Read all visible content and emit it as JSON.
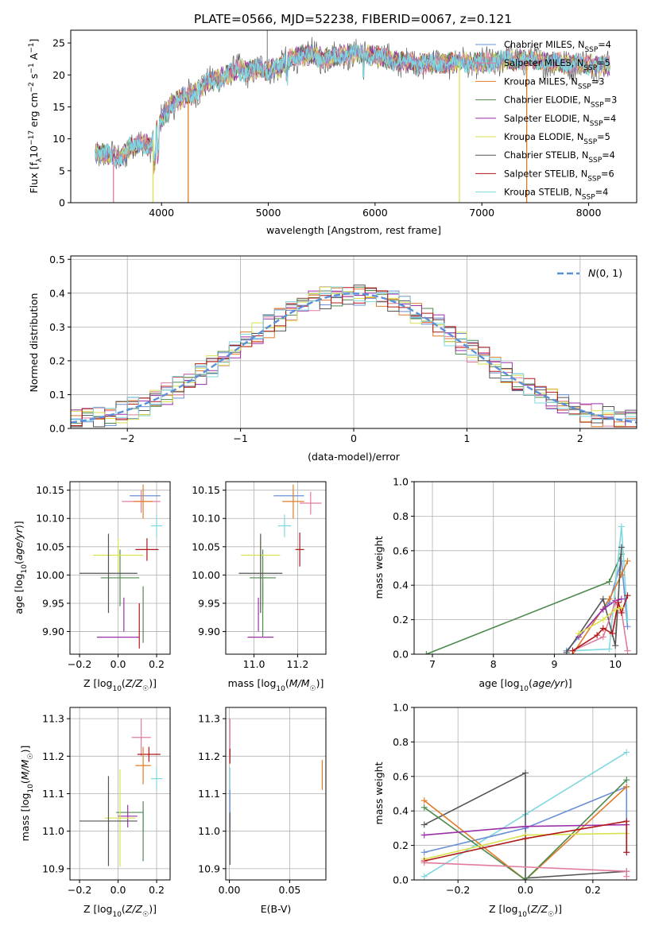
{
  "figure_title": "PLATE=0566, MJD=52238, FIBERID=0067, z=0.121",
  "colors": {
    "chabrier_miles": "#6a8fd8",
    "salpeter_miles": "#e07b9e",
    "kroupa_miles": "#e07b27",
    "chabrier_elodie": "#4e8a4e",
    "salpeter_elodie": "#9a2fa8",
    "kroupa_elodie": "#d8e24e",
    "chabrier_stelib": "#555555",
    "salpeter_stelib": "#b01818",
    "kroupa_stelib": "#7fd8e0",
    "normal_curve": "#5b8fd9"
  },
  "chart_data": [
    {
      "id": "spectrum",
      "type": "line",
      "title": "PLATE=0566, MJD=52238, FIBERID=0067, z=0.121",
      "xlabel": "wavelength [Angstrom, rest frame]",
      "ylabel": "Flux [f_λ 10^-17 erg cm^-2 s^-1 A^-1]",
      "xlim": [
        3150,
        8450
      ],
      "ylim": [
        0,
        27
      ],
      "xticks": [
        "4000",
        "5000",
        "6000",
        "7000",
        "8000"
      ],
      "yticks": [
        "0",
        "5",
        "10",
        "15",
        "20",
        "25"
      ],
      "legend_position": "top-right",
      "continuum": {
        "x": [
          3380,
          3500,
          3600,
          3700,
          3800,
          3900,
          4000,
          4100,
          4200,
          4300,
          4400,
          4500,
          4600,
          4700,
          4800,
          4900,
          5000,
          5100,
          5200,
          5300,
          5400,
          5500,
          5600,
          5700,
          5800,
          5900,
          6000,
          6200,
          6400,
          6600,
          6800,
          7000,
          7200,
          7400,
          7600,
          7800,
          8000,
          8200
        ],
        "y": [
          7.8,
          7.5,
          6.8,
          8.5,
          9.2,
          9.0,
          13.0,
          15.5,
          16.5,
          17.0,
          18.5,
          19.2,
          19.8,
          20.8,
          20.5,
          21.0,
          20.8,
          21.2,
          22.5,
          23.0,
          23.2,
          22.6,
          22.8,
          23.2,
          23.5,
          23.3,
          23.0,
          22.2,
          21.8,
          21.8,
          22.0,
          21.8,
          22.3,
          22.4,
          22.0,
          21.8,
          21.6,
          21.4
        ]
      },
      "drops": [
        {
          "series": "Salpeter MILES",
          "x": 3550
        },
        {
          "series": "Kroupa ELODIE",
          "x": 3920
        },
        {
          "series": "Kroupa MILES",
          "x": 4250
        },
        {
          "series": "Kroupa ELODIE",
          "x": 6790
        },
        {
          "series": "Kroupa MILES",
          "x": 7420
        }
      ],
      "series": [
        {
          "name": "Chabrier MILES, N_SSP=4",
          "color_key": "chabrier_miles"
        },
        {
          "name": "Salpeter MILES, N_SSP=5",
          "color_key": "salpeter_miles"
        },
        {
          "name": "Kroupa MILES, N_SSP=3",
          "color_key": "kroupa_miles"
        },
        {
          "name": "Chabrier ELODIE, N_SSP=3",
          "color_key": "chabrier_elodie"
        },
        {
          "name": "Salpeter ELODIE, N_SSP=4",
          "color_key": "salpeter_elodie"
        },
        {
          "name": "Kroupa ELODIE, N_SSP=5",
          "color_key": "kroupa_elodie"
        },
        {
          "name": "Chabrier STELIB, N_SSP=4",
          "color_key": "chabrier_stelib"
        },
        {
          "name": "Salpeter STELIB, N_SSP=6",
          "color_key": "salpeter_stelib"
        },
        {
          "name": "Kroupa STELIB, N_SSP=4",
          "color_key": "kroupa_stelib"
        }
      ]
    },
    {
      "id": "residuals",
      "type": "bar",
      "xlabel": "(data-model)/error",
      "ylabel": "Normed distribution",
      "xlim": [
        -2.5,
        2.5
      ],
      "ylim": [
        0,
        0.51
      ],
      "xticks": [
        "−2",
        "−1",
        "0",
        "1",
        "2"
      ],
      "yticks": [
        "0.0",
        "0.1",
        "0.2",
        "0.3",
        "0.4",
        "0.5"
      ],
      "grid": true,
      "legend_position": "top-right",
      "bin_width": 0.1,
      "normal_curve_label": "N(0,1)",
      "series_keys": [
        "chabrier_miles",
        "salpeter_miles",
        "kroupa_miles",
        "chabrier_elodie",
        "salpeter_elodie",
        "kroupa_elodie",
        "chabrier_stelib",
        "salpeter_stelib",
        "kroupa_stelib"
      ]
    },
    {
      "id": "age_vs_Z",
      "type": "scatter",
      "xlabel": "Z [log10(Z/Z☉)]",
      "ylabel": "age [log10(age/yr)]",
      "xlim": [
        -0.25,
        0.27
      ],
      "ylim": [
        9.86,
        10.165
      ],
      "xticks": [
        -0.2,
        0.0,
        0.2
      ],
      "yticks": [
        9.9,
        9.95,
        10.0,
        10.05,
        10.1,
        10.15
      ],
      "grid": true,
      "points": [
        {
          "key": "chabrier_miles",
          "x": 0.14,
          "y": 10.14,
          "xerr": 0.08,
          "yerr": 0.0
        },
        {
          "key": "salpeter_miles",
          "x": 0.12,
          "y": 10.13,
          "xerr": 0.1,
          "yerr": 0.02
        },
        {
          "key": "kroupa_miles",
          "x": 0.13,
          "y": 10.13,
          "xerr": 0.05,
          "yerr": 0.03
        },
        {
          "key": "chabrier_elodie",
          "x": 0.01,
          "y": 9.995,
          "xerr": 0.1,
          "yerr": 0.05
        },
        {
          "key": "salpeter_elodie",
          "x": 0.0,
          "y": 9.89,
          "xerr": 0.11,
          "yerr": 0.0
        },
        {
          "key": "kroupa_elodie",
          "x": 0.0,
          "y": 10.035,
          "xerr": 0.13,
          "yerr": 0.03
        },
        {
          "key": "chabrier_stelib",
          "x": -0.05,
          "y": 10.003,
          "xerr": 0.15,
          "yerr": 0.07
        },
        {
          "key": "salpeter_stelib",
          "x": 0.15,
          "y": 10.045,
          "xerr": 0.06,
          "yerr": 0.02
        },
        {
          "key": "kroupa_stelib",
          "x": 0.2,
          "y": 10.087,
          "xerr": 0.03,
          "yerr": 0.02
        },
        {
          "key": "salpeter_elodie",
          "x": 0.03,
          "y": 9.93,
          "xerr": 0.0,
          "yerr": 0.03
        },
        {
          "key": "chabrier_elodie",
          "x": 0.13,
          "y": 9.93,
          "xerr": 0.0,
          "yerr": 0.05
        },
        {
          "key": "salpeter_stelib",
          "x": 0.11,
          "y": 9.91,
          "xerr": 0.0,
          "yerr": 0.04
        }
      ]
    },
    {
      "id": "age_vs_mass",
      "type": "scatter",
      "xlabel": "mass [log10(M/M☉)]",
      "ylabel": "",
      "xlim": [
        10.87,
        11.33
      ],
      "ylim": [
        9.86,
        10.165
      ],
      "xticks": [
        11.0,
        11.2
      ],
      "yticks": [
        9.9,
        9.95,
        10.0,
        10.05,
        10.1,
        10.15
      ],
      "grid": true,
      "points": [
        {
          "key": "chabrier_miles",
          "x": 11.16,
          "y": 10.14,
          "xerr": 0.07,
          "yerr": 0.0
        },
        {
          "key": "salpeter_miles",
          "x": 11.26,
          "y": 10.127,
          "xerr": 0.05,
          "yerr": 0.02
        },
        {
          "key": "kroupa_miles",
          "x": 11.18,
          "y": 10.13,
          "xerr": 0.05,
          "yerr": 0.03
        },
        {
          "key": "chabrier_elodie",
          "x": 11.04,
          "y": 9.995,
          "xerr": 0.06,
          "yerr": 0.05
        },
        {
          "key": "salpeter_elodie",
          "x": 11.03,
          "y": 9.89,
          "xerr": 0.06,
          "yerr": 0.0
        },
        {
          "key": "kroupa_elodie",
          "x": 11.03,
          "y": 10.035,
          "xerr": 0.09,
          "yerr": 0.03
        },
        {
          "key": "chabrier_stelib",
          "x": 11.03,
          "y": 10.003,
          "xerr": 0.1,
          "yerr": 0.07
        },
        {
          "key": "salpeter_stelib",
          "x": 11.21,
          "y": 10.045,
          "xerr": 0.02,
          "yerr": 0.03
        },
        {
          "key": "kroupa_stelib",
          "x": 11.14,
          "y": 10.087,
          "xerr": 0.03,
          "yerr": 0.02
        },
        {
          "key": "salpeter_elodie",
          "x": 11.02,
          "y": 9.93,
          "xerr": 0.0,
          "yerr": 0.03
        },
        {
          "key": "chabrier_elodie",
          "x": 11.04,
          "y": 9.94,
          "xerr": 0.0,
          "yerr": 0.05
        }
      ]
    },
    {
      "id": "weight_vs_age",
      "type": "line",
      "xlabel": "age [log10(age/yr)]",
      "ylabel": "mass weight",
      "xlim": [
        6.7,
        10.35
      ],
      "ylim": [
        0,
        1.0
      ],
      "xticks": [
        7,
        8,
        9,
        10
      ],
      "yticks": [
        0.0,
        0.2,
        0.4,
        0.6,
        0.8,
        1.0
      ],
      "grid": true,
      "series": [
        {
          "key": "chabrier_elodie",
          "x": [
            6.9,
            9.9,
            10.1
          ],
          "y": [
            0.0,
            0.42,
            0.58
          ]
        },
        {
          "key": "chabrier_miles",
          "x": [
            9.2,
            9.9,
            10.1,
            10.2
          ],
          "y": [
            0.02,
            0.3,
            0.54,
            0.16
          ]
        },
        {
          "key": "kroupa_stelib",
          "x": [
            9.3,
            9.9,
            10.1,
            10.2
          ],
          "y": [
            0.02,
            0.03,
            0.74,
            0.2
          ]
        },
        {
          "key": "kroupa_miles",
          "x": [
            9.3,
            9.9,
            10.1,
            10.2
          ],
          "y": [
            0.0,
            0.32,
            0.46,
            0.54
          ]
        },
        {
          "key": "chabrier_stelib",
          "x": [
            9.2,
            9.8,
            10.0,
            10.1
          ],
          "y": [
            0.01,
            0.32,
            0.05,
            0.62
          ]
        },
        {
          "key": "salpeter_elodie",
          "x": [
            9.4,
            9.8,
            10.0,
            10.1
          ],
          "y": [
            0.1,
            0.26,
            0.31,
            0.32
          ]
        },
        {
          "key": "salpeter_miles",
          "x": [
            9.3,
            9.8,
            10.0,
            10.1,
            10.2
          ],
          "y": [
            0.02,
            0.1,
            0.3,
            0.25,
            0.02
          ]
        },
        {
          "key": "salpeter_stelib",
          "x": [
            9.3,
            9.7,
            9.8,
            9.95,
            10.05,
            10.1,
            10.2
          ],
          "y": [
            0.02,
            0.11,
            0.15,
            0.12,
            0.3,
            0.24,
            0.34
          ]
        },
        {
          "key": "kroupa_elodie",
          "x": [
            9.4,
            9.8,
            10.0,
            10.1
          ],
          "y": [
            0.12,
            0.2,
            0.26,
            0.27
          ]
        }
      ]
    },
    {
      "id": "mass_vs_Z",
      "type": "scatter",
      "xlabel": "Z [log10(Z/Z☉)]",
      "ylabel": "mass [log10(M/M☉)]",
      "xlim": [
        -0.25,
        0.27
      ],
      "ylim": [
        10.87,
        11.33
      ],
      "xticks": [
        -0.2,
        0.0,
        0.2
      ],
      "yticks": [
        10.9,
        11.0,
        11.1,
        11.2,
        11.3
      ],
      "grid": true,
      "points": [
        {
          "key": "salpeter_miles",
          "x": 0.12,
          "y": 11.25,
          "xerr": 0.05,
          "yerr": 0.05
        },
        {
          "key": "salpeter_stelib",
          "x": 0.16,
          "y": 11.205,
          "xerr": 0.06,
          "yerr": 0.02
        },
        {
          "key": "kroupa_miles",
          "x": 0.13,
          "y": 11.175,
          "xerr": 0.04,
          "yerr": 0.05
        },
        {
          "key": "kroupa_stelib",
          "x": 0.2,
          "y": 11.14,
          "xerr": 0.03,
          "yerr": 0.03
        },
        {
          "key": "chabrier_elodie",
          "x": 0.06,
          "y": 11.05,
          "xerr": 0.07,
          "yerr": 0.0
        },
        {
          "key": "salpeter_elodie",
          "x": 0.05,
          "y": 11.04,
          "xerr": 0.05,
          "yerr": 0.03
        },
        {
          "key": "kroupa_elodie",
          "x": 0.01,
          "y": 11.035,
          "xerr": 0.08,
          "yerr": 0.13
        },
        {
          "key": "chabrier_stelib",
          "x": -0.05,
          "y": 11.027,
          "xerr": 0.15,
          "yerr": 0.12
        },
        {
          "key": "chabrier_miles",
          "x": 0.13,
          "y": 11.03,
          "xerr": 0.0,
          "yerr": 0.03
        },
        {
          "key": "chabrier_elodie",
          "x": 0.13,
          "y": 11.0,
          "xerr": 0.0,
          "yerr": 0.08
        }
      ]
    },
    {
      "id": "mass_vs_EBV",
      "type": "scatter",
      "xlabel": "E(B-V)",
      "ylabel": "",
      "xlim": [
        -0.003,
        0.08
      ],
      "ylim": [
        10.87,
        11.33
      ],
      "xticks": [
        0.0,
        0.05
      ],
      "yticks": [
        10.9,
        11.0,
        11.1,
        11.2,
        11.3
      ],
      "grid": true,
      "points": [
        {
          "key": "salpeter_miles",
          "x": 0.0005,
          "y": 11.25,
          "xerr": 0.0,
          "yerr": 0.05
        },
        {
          "key": "salpeter_stelib",
          "x": 0.0005,
          "y": 11.2,
          "xerr": 0.0,
          "yerr": 0.02
        },
        {
          "key": "kroupa_stelib",
          "x": 0.0005,
          "y": 11.14,
          "xerr": 0.0,
          "yerr": 0.03
        },
        {
          "key": "chabrier_miles",
          "x": 0.0005,
          "y": 11.06,
          "xerr": 0.0,
          "yerr": 0.05
        },
        {
          "key": "chabrier_stelib",
          "x": 0.0005,
          "y": 10.98,
          "xerr": 0.0,
          "yerr": 0.07
        },
        {
          "key": "kroupa_miles",
          "x": 0.077,
          "y": 11.15,
          "xerr": 0.0,
          "yerr": 0.04
        }
      ]
    },
    {
      "id": "weight_vs_Z",
      "type": "line",
      "xlabel": "Z [log10(Z/Z☉)]",
      "ylabel": "mass weight",
      "xlim": [
        -0.33,
        0.33
      ],
      "ylim": [
        0,
        1.0
      ],
      "xticks": [
        -0.2,
        0.0,
        0.2
      ],
      "yticks": [
        0.0,
        0.2,
        0.4,
        0.6,
        0.8,
        1.0
      ],
      "grid": true,
      "series": [
        {
          "key": "kroupa_stelib",
          "x": [
            -0.3,
            0.0,
            0.3
          ],
          "y": [
            0.02,
            0.38,
            0.74
          ]
        },
        {
          "key": "chabrier_stelib",
          "x": [
            -0.3,
            0.0,
            0.0,
            0.3
          ],
          "y": [
            0.32,
            0.62,
            0.01,
            0.05
          ]
        },
        {
          "key": "chabrier_miles",
          "x": [
            -0.3,
            0.0,
            0.3,
            0.3
          ],
          "y": [
            0.16,
            0.3,
            0.54,
            0.16
          ]
        },
        {
          "key": "kroupa_miles",
          "x": [
            -0.3,
            0.0,
            0.3
          ],
          "y": [
            0.46,
            0.0,
            0.54
          ]
        },
        {
          "key": "chabrier_elodie",
          "x": [
            -0.3,
            0.0,
            0.3
          ],
          "y": [
            0.42,
            0.0,
            0.58
          ]
        },
        {
          "key": "salpeter_elodie",
          "x": [
            -0.3,
            0.0,
            0.3
          ],
          "y": [
            0.26,
            0.31,
            0.32
          ]
        },
        {
          "key": "kroupa_elodie",
          "x": [
            -0.3,
            0.0,
            0.3
          ],
          "y": [
            0.12,
            0.26,
            0.27
          ]
        },
        {
          "key": "salpeter_stelib",
          "x": [
            -0.3,
            0.0,
            0.3,
            0.3
          ],
          "y": [
            0.11,
            0.24,
            0.34,
            0.16
          ]
        },
        {
          "key": "salpeter_miles",
          "x": [
            -0.3,
            0.3,
            0.3
          ],
          "y": [
            0.1,
            0.05,
            0.02
          ]
        }
      ]
    }
  ]
}
